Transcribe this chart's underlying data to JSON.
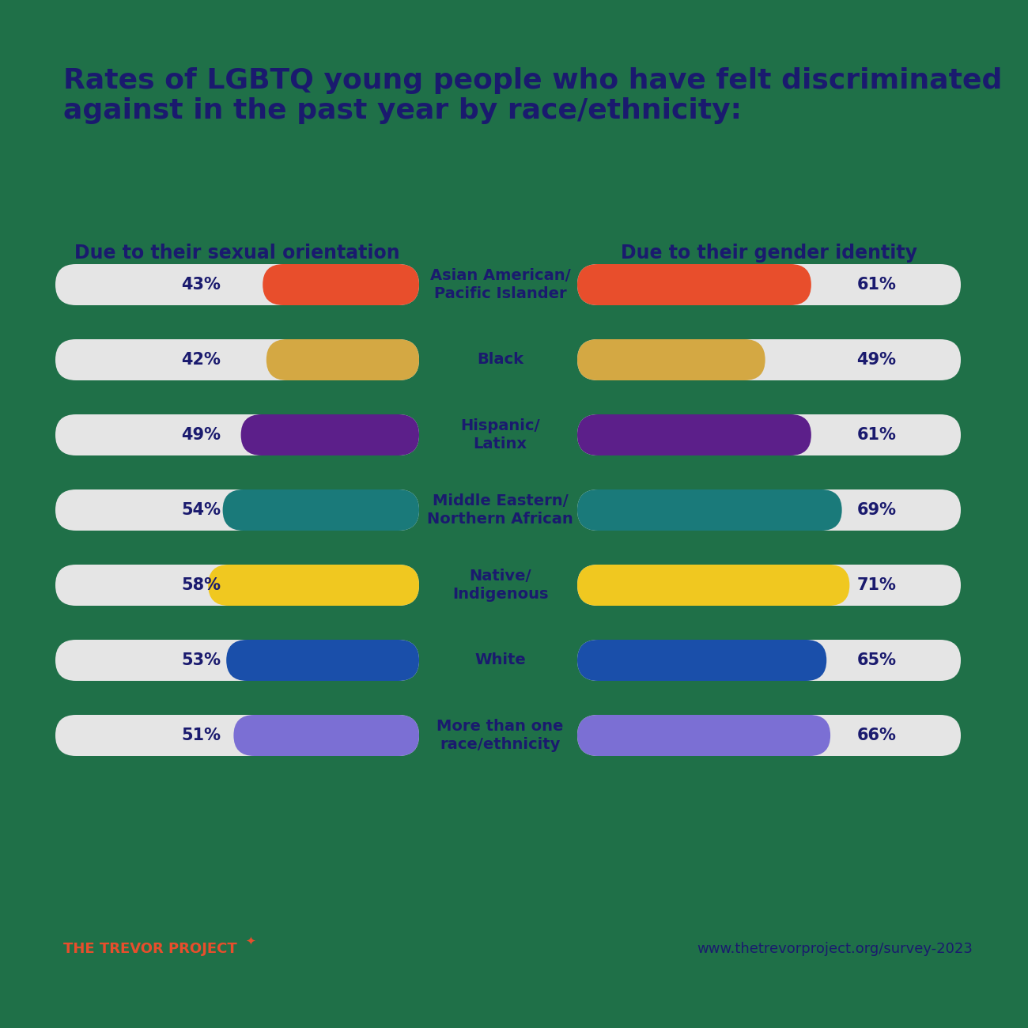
{
  "background_color": "#1f7048",
  "title_line1": "Rates of LGBTQ young people who have felt discriminated",
  "title_line2": "against in the past year by race/ethnicity:",
  "title_color": "#1a1a6e",
  "title_fontsize": 26,
  "left_header": "Due to their sexual orientation",
  "right_header": "Due to their gender identity",
  "header_color": "#1a1a6e",
  "header_fontsize": 17,
  "categories": [
    "Asian American/\nPacific Islander",
    "Black",
    "Hispanic/\nLatinx",
    "Middle Eastern/\nNorthern African",
    "Native/\nIndigenous",
    "White",
    "More than one\nrace/ethnicity"
  ],
  "left_values": [
    43,
    42,
    49,
    54,
    58,
    53,
    51
  ],
  "right_values": [
    61,
    49,
    61,
    69,
    71,
    65,
    66
  ],
  "bar_colors": [
    "#e84e2c",
    "#d4a843",
    "#5c1f8a",
    "#1a7a7a",
    "#f0c820",
    "#1a4faa",
    "#7b6fd4"
  ],
  "bar_bg_color": "#e5e5e5",
  "text_color": "#1a1a6e",
  "value_fontsize": 15,
  "category_fontsize": 14,
  "trevor_text": "THE TREVOR PROJECT",
  "trevor_color": "#e84e2c",
  "url_text": "www.thetrevorproject.org/survey-2023",
  "url_color": "#1a1a6e"
}
